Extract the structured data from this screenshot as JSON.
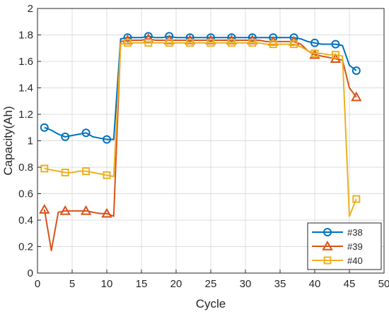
{
  "chart_data": {
    "type": "line",
    "title": "",
    "xlabel": "Cycle",
    "ylabel": "Capacity(Ah)",
    "xlim": [
      0,
      50
    ],
    "ylim": [
      0,
      2
    ],
    "xticks": [
      "0",
      "5",
      "10",
      "15",
      "20",
      "25",
      "30",
      "35",
      "40",
      "45",
      "50"
    ],
    "yticks": [
      "0",
      "0.2",
      "0.4",
      "0.6",
      "0.8",
      "1",
      "1.2",
      "1.4",
      "1.6",
      "1.8",
      "2"
    ],
    "grid": true,
    "legend_position": "bottom-right",
    "series": [
      {
        "name": "#38",
        "color": "#0072BD",
        "marker": "circle",
        "x": [
          1,
          2,
          3,
          4,
          5,
          6,
          7,
          8,
          9,
          10,
          11,
          12,
          13,
          14,
          15,
          16,
          17,
          18,
          19,
          20,
          21,
          22,
          23,
          24,
          25,
          26,
          27,
          28,
          29,
          30,
          31,
          32,
          33,
          34,
          35,
          36,
          37,
          38,
          39,
          40,
          41,
          42,
          43,
          44,
          45,
          46
        ],
        "y": [
          1.1,
          1.08,
          1.05,
          1.03,
          1.04,
          1.05,
          1.06,
          1.03,
          1.02,
          1.01,
          1.01,
          1.77,
          1.78,
          1.78,
          1.78,
          1.79,
          1.78,
          1.78,
          1.79,
          1.78,
          1.78,
          1.78,
          1.78,
          1.78,
          1.78,
          1.78,
          1.78,
          1.78,
          1.78,
          1.78,
          1.78,
          1.78,
          1.78,
          1.78,
          1.78,
          1.78,
          1.78,
          1.77,
          1.75,
          1.74,
          1.73,
          1.73,
          1.73,
          1.72,
          1.57,
          1.53
        ],
        "marker_every": 3
      },
      {
        "name": "#39",
        "color": "#D95319",
        "marker": "triangle",
        "x": [
          1,
          2,
          3,
          4,
          5,
          6,
          7,
          8,
          9,
          10,
          11,
          12,
          13,
          14,
          15,
          16,
          17,
          18,
          19,
          20,
          21,
          22,
          23,
          24,
          25,
          26,
          27,
          28,
          29,
          30,
          31,
          32,
          33,
          34,
          35,
          36,
          37,
          38,
          39,
          40,
          41,
          42,
          43,
          44,
          45,
          46
        ],
        "y": [
          0.48,
          0.17,
          0.46,
          0.47,
          0.47,
          0.47,
          0.47,
          0.46,
          0.45,
          0.45,
          0.43,
          1.75,
          1.76,
          1.76,
          1.76,
          1.77,
          1.76,
          1.76,
          1.76,
          1.76,
          1.76,
          1.76,
          1.76,
          1.76,
          1.76,
          1.76,
          1.76,
          1.76,
          1.76,
          1.76,
          1.76,
          1.76,
          1.75,
          1.75,
          1.75,
          1.75,
          1.75,
          1.73,
          1.68,
          1.65,
          1.64,
          1.63,
          1.62,
          1.61,
          1.4,
          1.33
        ],
        "marker_every": 3
      },
      {
        "name": "#40",
        "color": "#EDB120",
        "marker": "square",
        "x": [
          1,
          2,
          3,
          4,
          5,
          6,
          7,
          8,
          9,
          10,
          11,
          12,
          13,
          14,
          15,
          16,
          17,
          18,
          19,
          20,
          21,
          22,
          23,
          24,
          25,
          26,
          27,
          28,
          29,
          30,
          31,
          32,
          33,
          34,
          35,
          36,
          37,
          38,
          39,
          40,
          41,
          42,
          43,
          44,
          45,
          46
        ],
        "y": [
          0.79,
          0.78,
          0.77,
          0.76,
          0.76,
          0.77,
          0.77,
          0.76,
          0.75,
          0.74,
          0.73,
          1.73,
          1.74,
          1.74,
          1.74,
          1.74,
          1.74,
          1.74,
          1.74,
          1.74,
          1.74,
          1.74,
          1.74,
          1.74,
          1.74,
          1.74,
          1.74,
          1.74,
          1.74,
          1.74,
          1.74,
          1.74,
          1.73,
          1.73,
          1.73,
          1.73,
          1.73,
          1.71,
          1.68,
          1.66,
          1.66,
          1.65,
          1.65,
          1.64,
          0.43,
          0.56
        ],
        "marker_every": 3
      }
    ]
  }
}
